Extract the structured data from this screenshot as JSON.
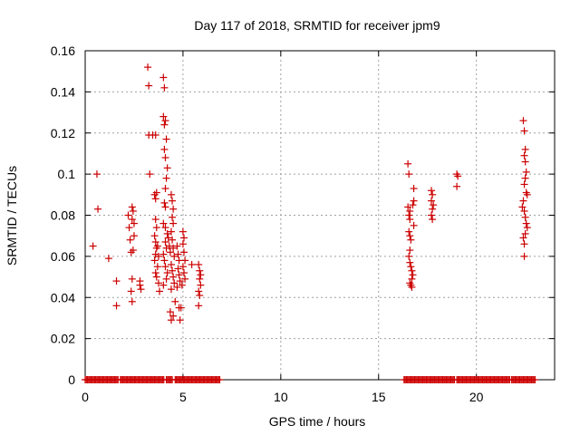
{
  "chart_data": {
    "type": "scatter",
    "title": "Day 117 of 2018, SRMTID for receiver jpm9",
    "xlabel": "GPS time / hours",
    "ylabel": "SRMTID / TECUs",
    "xlim": [
      0,
      24
    ],
    "ylim": [
      0,
      0.16
    ],
    "xticks": [
      0,
      5,
      10,
      15,
      20
    ],
    "xtick_labels": [
      "0",
      "5",
      "10",
      "15",
      "20"
    ],
    "yticks": [
      0,
      0.02,
      0.04,
      0.06,
      0.08,
      0.1,
      0.12,
      0.14,
      0.16
    ],
    "ytick_labels": [
      "0",
      "0.02",
      "0.04",
      "0.06",
      "0.08",
      "0.1",
      "0.12",
      "0.14",
      "0.16"
    ],
    "grid": true,
    "marker": "+",
    "color": "#cc0000",
    "series": [
      {
        "name": "SRMTID",
        "points": [
          [
            0.4,
            0.065
          ],
          [
            0.6,
            0.1
          ],
          [
            0.65,
            0.083
          ],
          [
            1.2,
            0.059
          ],
          [
            1.6,
            0.048
          ],
          [
            1.6,
            0.036
          ],
          [
            2.2,
            0.08
          ],
          [
            2.25,
            0.074
          ],
          [
            2.3,
            0.068
          ],
          [
            2.35,
            0.062
          ],
          [
            2.4,
            0.078
          ],
          [
            2.4,
            0.084
          ],
          [
            2.45,
            0.082
          ],
          [
            2.5,
            0.076
          ],
          [
            2.5,
            0.07
          ],
          [
            2.4,
            0.049
          ],
          [
            2.35,
            0.043
          ],
          [
            2.4,
            0.038
          ],
          [
            2.45,
            0.063
          ],
          [
            2.8,
            0.048
          ],
          [
            2.8,
            0.046
          ],
          [
            2.85,
            0.044
          ],
          [
            3.2,
            0.152
          ],
          [
            3.25,
            0.143
          ],
          [
            3.25,
            0.119
          ],
          [
            3.3,
            0.1
          ],
          [
            3.45,
            0.119
          ],
          [
            3.6,
            0.119
          ],
          [
            3.55,
            0.09
          ],
          [
            3.6,
            0.088
          ],
          [
            3.65,
            0.091
          ],
          [
            3.6,
            0.078
          ],
          [
            3.65,
            0.074
          ],
          [
            3.55,
            0.07
          ],
          [
            3.6,
            0.067
          ],
          [
            3.65,
            0.064
          ],
          [
            3.6,
            0.061
          ],
          [
            3.55,
            0.058
          ],
          [
            3.7,
            0.055
          ],
          [
            3.6,
            0.052
          ],
          [
            3.65,
            0.05
          ],
          [
            3.75,
            0.047
          ],
          [
            3.8,
            0.043
          ],
          [
            3.7,
            0.065
          ],
          [
            3.75,
            0.06
          ],
          [
            4.0,
            0.147
          ],
          [
            4.05,
            0.142
          ],
          [
            4.0,
            0.128
          ],
          [
            4.1,
            0.126
          ],
          [
            4.05,
            0.124
          ],
          [
            4.15,
            0.117
          ],
          [
            4.05,
            0.112
          ],
          [
            4.1,
            0.108
          ],
          [
            4.2,
            0.103
          ],
          [
            4.15,
            0.098
          ],
          [
            4.1,
            0.093
          ],
          [
            4.05,
            0.086
          ],
          [
            4.1,
            0.084
          ],
          [
            4.0,
            0.076
          ],
          [
            4.1,
            0.074
          ],
          [
            4.2,
            0.071
          ],
          [
            4.1,
            0.067
          ],
          [
            4.15,
            0.064
          ],
          [
            4.0,
            0.061
          ],
          [
            4.05,
            0.058
          ],
          [
            4.1,
            0.055
          ],
          [
            4.2,
            0.052
          ],
          [
            4.15,
            0.049
          ],
          [
            4.0,
            0.046
          ],
          [
            4.25,
            0.069
          ],
          [
            4.3,
            0.065
          ],
          [
            4.35,
            0.062
          ],
          [
            4.4,
            0.09
          ],
          [
            4.45,
            0.087
          ],
          [
            4.5,
            0.083
          ],
          [
            4.45,
            0.079
          ],
          [
            4.5,
            0.076
          ],
          [
            4.4,
            0.072
          ],
          [
            4.45,
            0.068
          ],
          [
            4.5,
            0.064
          ],
          [
            4.55,
            0.06
          ],
          [
            4.4,
            0.056
          ],
          [
            4.45,
            0.053
          ],
          [
            4.5,
            0.05
          ],
          [
            4.55,
            0.047
          ],
          [
            4.4,
            0.044
          ],
          [
            4.35,
            0.033
          ],
          [
            4.4,
            0.029
          ],
          [
            4.5,
            0.031
          ],
          [
            4.6,
            0.038
          ],
          [
            4.7,
            0.065
          ],
          [
            4.75,
            0.061
          ],
          [
            4.8,
            0.058
          ],
          [
            4.75,
            0.054
          ],
          [
            4.8,
            0.051
          ],
          [
            4.85,
            0.048
          ],
          [
            4.7,
            0.045
          ],
          [
            4.8,
            0.035
          ],
          [
            4.85,
            0.029
          ],
          [
            4.9,
            0.035
          ],
          [
            4.95,
            0.046
          ],
          [
            5.0,
            0.072
          ],
          [
            5.05,
            0.069
          ],
          [
            5.0,
            0.066
          ],
          [
            5.05,
            0.062
          ],
          [
            5.1,
            0.058
          ],
          [
            5.0,
            0.055
          ],
          [
            5.05,
            0.052
          ],
          [
            5.1,
            0.049
          ],
          [
            5.45,
            0.056
          ],
          [
            5.8,
            0.056
          ],
          [
            5.85,
            0.053
          ],
          [
            5.9,
            0.051
          ],
          [
            5.85,
            0.049
          ],
          [
            5.9,
            0.046
          ],
          [
            5.8,
            0.043
          ],
          [
            5.85,
            0.041
          ],
          [
            5.8,
            0.036
          ],
          [
            16.5,
            0.105
          ],
          [
            16.55,
            0.1
          ],
          [
            16.5,
            0.084
          ],
          [
            16.6,
            0.082
          ],
          [
            16.55,
            0.08
          ],
          [
            16.6,
            0.078
          ],
          [
            16.55,
            0.072
          ],
          [
            16.6,
            0.07
          ],
          [
            16.65,
            0.068
          ],
          [
            16.6,
            0.063
          ],
          [
            16.55,
            0.06
          ],
          [
            16.6,
            0.057
          ],
          [
            16.65,
            0.055
          ],
          [
            16.7,
            0.053
          ],
          [
            16.75,
            0.051
          ],
          [
            16.7,
            0.049
          ],
          [
            16.6,
            0.047
          ],
          [
            16.65,
            0.046
          ],
          [
            16.7,
            0.045
          ],
          [
            16.8,
            0.093
          ],
          [
            16.8,
            0.087
          ],
          [
            16.75,
            0.085
          ],
          [
            16.8,
            0.075
          ],
          [
            17.7,
            0.092
          ],
          [
            17.75,
            0.09
          ],
          [
            17.7,
            0.087
          ],
          [
            17.8,
            0.085
          ],
          [
            17.75,
            0.083
          ],
          [
            17.7,
            0.08
          ],
          [
            17.75,
            0.078
          ],
          [
            19.0,
            0.1
          ],
          [
            19.05,
            0.099
          ],
          [
            19.0,
            0.094
          ],
          [
            22.4,
            0.126
          ],
          [
            22.45,
            0.121
          ],
          [
            22.5,
            0.112
          ],
          [
            22.45,
            0.109
          ],
          [
            22.5,
            0.106
          ],
          [
            22.55,
            0.101
          ],
          [
            22.5,
            0.098
          ],
          [
            22.45,
            0.095
          ],
          [
            22.55,
            0.091
          ],
          [
            22.6,
            0.09
          ],
          [
            22.4,
            0.087
          ],
          [
            22.35,
            0.084
          ],
          [
            22.45,
            0.082
          ],
          [
            22.5,
            0.079
          ],
          [
            22.55,
            0.076
          ],
          [
            22.6,
            0.074
          ],
          [
            22.5,
            0.071
          ],
          [
            22.4,
            0.069
          ],
          [
            22.45,
            0.066
          ],
          [
            22.45,
            0.06
          ]
        ]
      }
    ],
    "zero_segments": [
      [
        0.0,
        1.7
      ],
      [
        1.8,
        4.05
      ],
      [
        4.15,
        4.45
      ],
      [
        4.6,
        6.9
      ],
      [
        16.3,
        18.9
      ],
      [
        19.0,
        21.7
      ],
      [
        21.8,
        23.0
      ]
    ]
  }
}
